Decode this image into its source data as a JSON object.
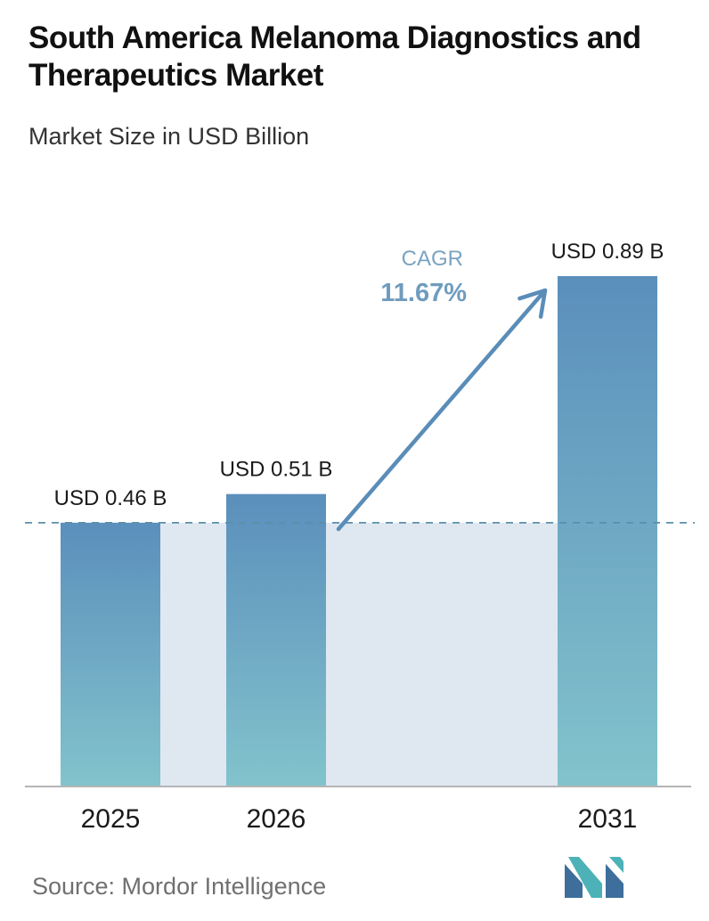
{
  "header": {
    "title": "South America Melanoma Diagnostics and Therapeutics Market",
    "subtitle": "Market Size in USD Billion"
  },
  "footer": {
    "source": "Source: Mordor Intelligence"
  },
  "colors": {
    "bar_top": "#5b8fbc",
    "bar_bottom": "#82c3cc",
    "band": "#dfe8f1",
    "dashed_line": "#5b8fa8",
    "arrow": "#5a8db8",
    "cagr_label": "#7aa3c0",
    "cagr_value": "#6f9cbe",
    "axis": "#b5b5b5"
  },
  "chart_data": {
    "type": "bar",
    "categories": [
      "2025",
      "2026",
      "2031"
    ],
    "values": [
      0.46,
      0.51,
      0.89
    ],
    "value_labels": [
      "USD 0.46 B",
      "USD 0.51 B",
      "USD 0.89 B"
    ],
    "ylim": [
      0,
      0.89
    ],
    "grid": false,
    "annotation": {
      "label": "CAGR",
      "value": "11.67%",
      "from_category": "2026",
      "to_category": "2031"
    },
    "reference_line_value": 0.46
  }
}
